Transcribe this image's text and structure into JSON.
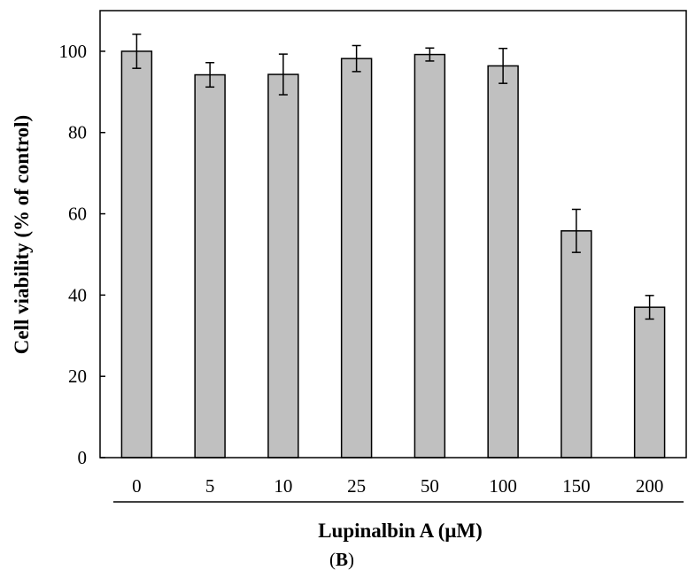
{
  "chart_data": {
    "type": "bar",
    "categories": [
      "0",
      "5",
      "10",
      "25",
      "50",
      "100",
      "150",
      "200"
    ],
    "values": [
      100,
      94.2,
      94.3,
      98.2,
      99.2,
      96.4,
      55.8,
      37.0
    ],
    "errors": [
      4.2,
      3.0,
      5.0,
      3.2,
      1.6,
      4.3,
      5.3,
      2.9
    ],
    "xlabel": "Lupinalbin A (μM)",
    "ylabel": "Cell viability (% of control)",
    "ylim": [
      0,
      110
    ],
    "yticks": [
      "0",
      "20",
      "40",
      "60",
      "80",
      "100"
    ],
    "grid": false,
    "bar_color": "#c0c0c0"
  },
  "panel_label": {
    "open": "(",
    "letter": "B",
    "close": ")"
  }
}
